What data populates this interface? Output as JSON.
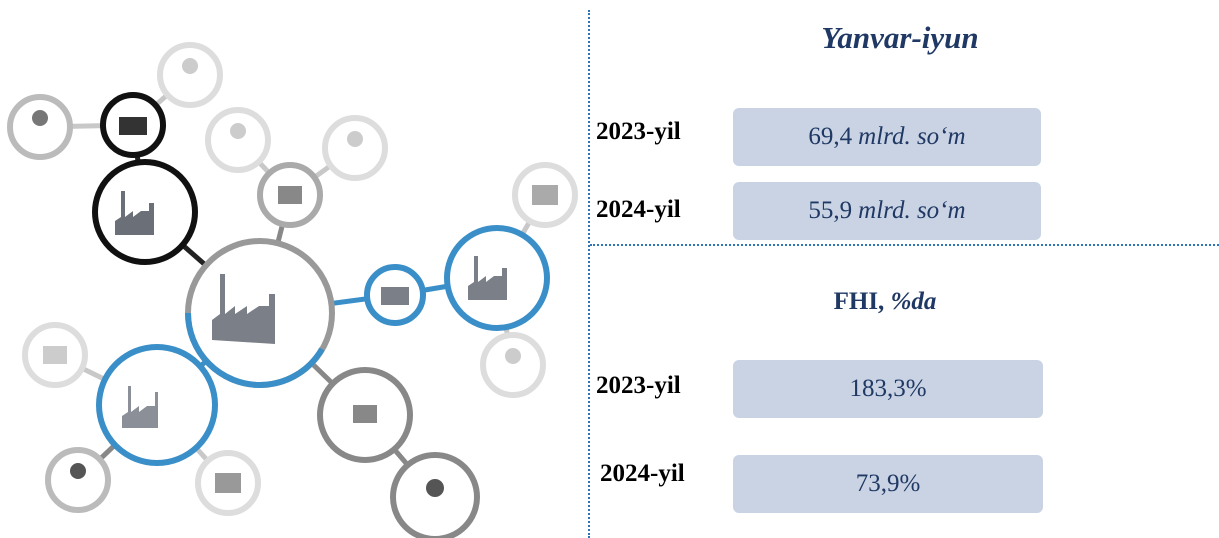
{
  "section1": {
    "title": "Yanvar-iyun",
    "rows": [
      {
        "year": "2023-yil",
        "amount": "69,4",
        "unit": "mlrd. so‘m"
      },
      {
        "year": "2024-yil",
        "amount": "55,9",
        "unit": "mlrd. so‘m"
      }
    ]
  },
  "section2": {
    "title": "FHI,",
    "unit": "%da",
    "rows": [
      {
        "year": "2023-yil",
        "value": "183,3%"
      },
      {
        "year": "2024-yil",
        "value": "73,9%"
      }
    ]
  }
}
